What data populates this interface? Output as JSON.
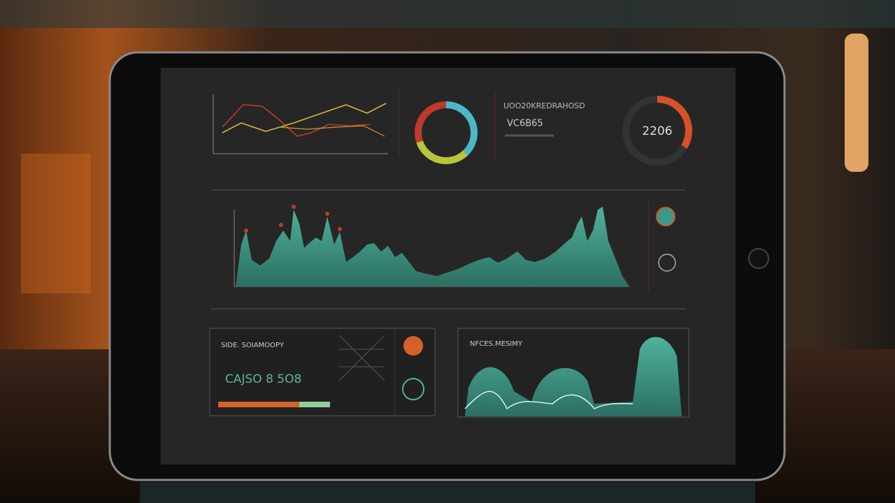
{
  "screen": {
    "top_right_panel": {
      "title": "UOO20KREDRAHOSD",
      "subtitle": "VC6B65"
    },
    "gauge": {
      "label": "2206"
    },
    "bottom_left_panel": {
      "title": "SIDE. SOIAMOOPY",
      "value": "CAJSO 8 5O8"
    },
    "bottom_right_panel": {
      "title": "NFCES.MESIMY"
    }
  }
}
